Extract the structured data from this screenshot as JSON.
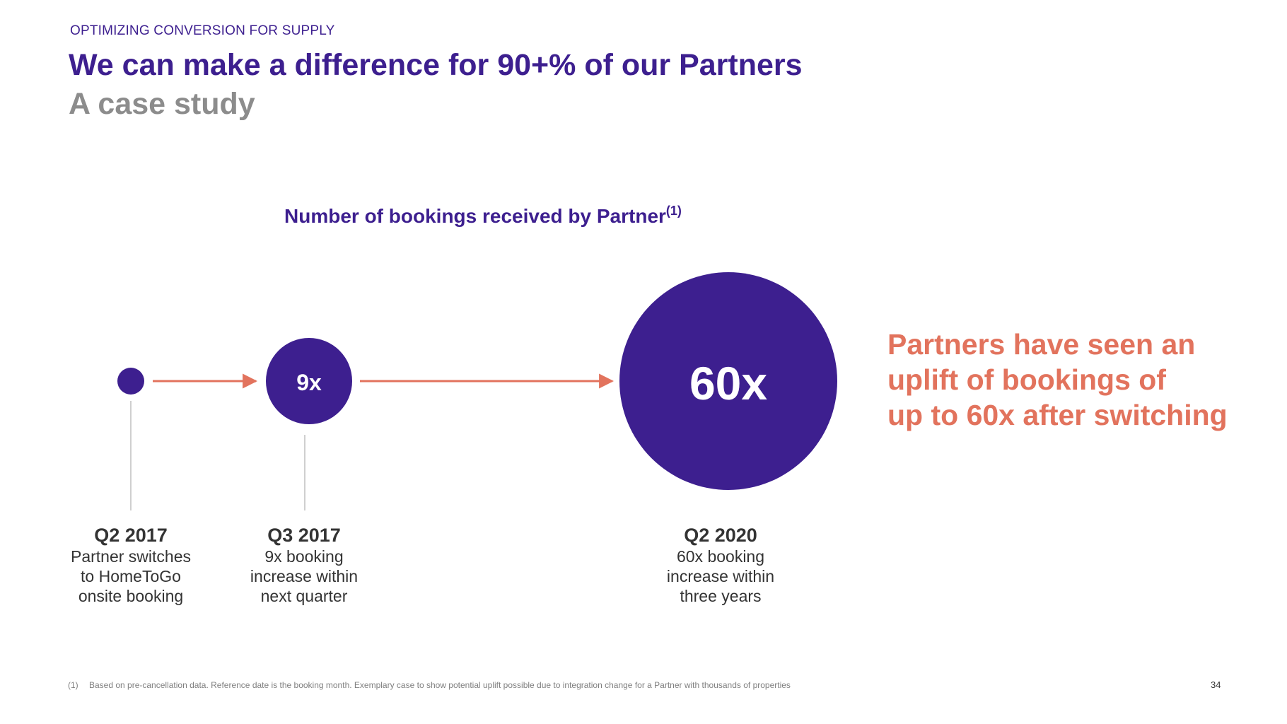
{
  "header": {
    "eyebrow": "OPTIMIZING CONVERSION FOR SUPPLY",
    "title": "We can make a difference for 90+% of our Partners",
    "subtitle": "A case study"
  },
  "diagram": {
    "title": "Number of bookings received by Partner",
    "title_footnote_ref": "(1)",
    "bubbles": [
      {
        "label": "",
        "multiplier": 1
      },
      {
        "label": "9x",
        "multiplier": 9
      },
      {
        "label": "60x",
        "multiplier": 60
      }
    ],
    "milestones": [
      {
        "period": "Q2 2017",
        "lines": [
          "Partner switches",
          "to HomeToGo",
          "onsite booking"
        ]
      },
      {
        "period": "Q3 2017",
        "lines": [
          "9x booking",
          "increase within",
          "next quarter"
        ]
      },
      {
        "period": "Q2 2020",
        "lines": [
          "60x booking",
          "increase within",
          "three years"
        ]
      }
    ]
  },
  "callout": {
    "lines": [
      "Partners have seen an",
      "uplift of bookings of",
      "up to 60x after switching"
    ]
  },
  "footer": {
    "footnote_number": "(1)",
    "footnote_text": "Based on pre-cancellation data. Reference date is the booking month. Exemplary case to show potential uplift possible due to integration change for a Partner with thousands of properties",
    "page_number": "34"
  },
  "colors": {
    "primary": "#3d1f8f",
    "accent": "#e2735d",
    "muted": "#8c8c8c",
    "connector": "#bfbfbf"
  }
}
